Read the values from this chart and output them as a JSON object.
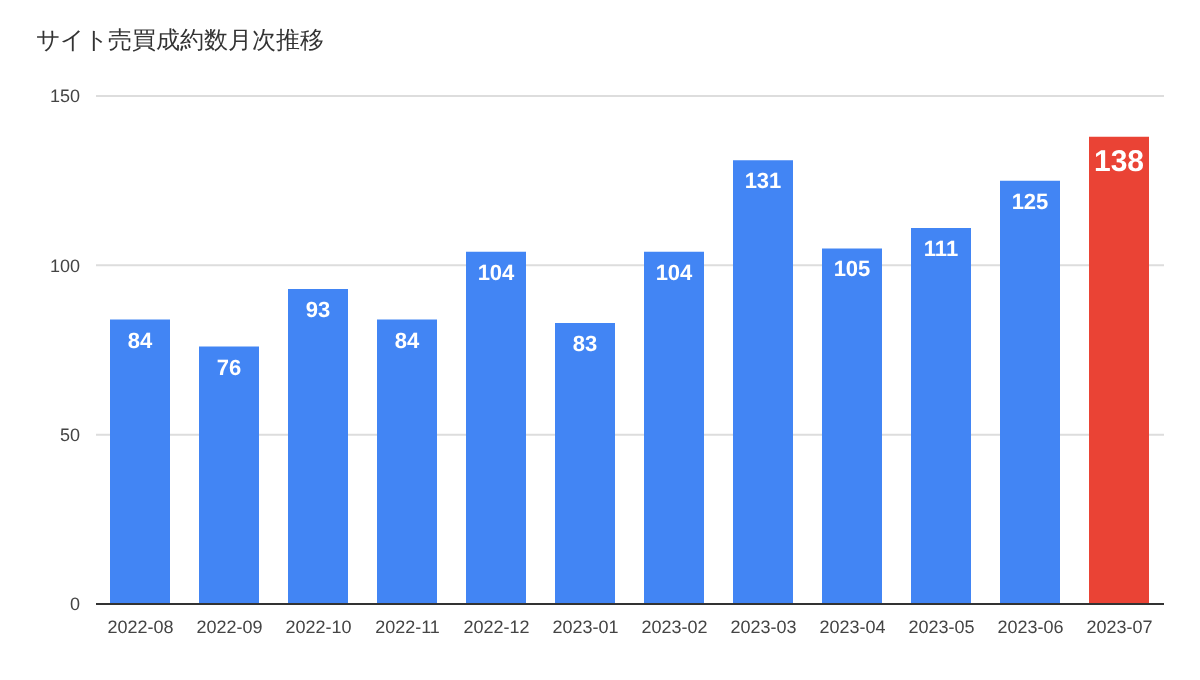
{
  "chart_data": {
    "type": "bar",
    "title": "サイト売買成約数月次推移",
    "categories": [
      "2022-08",
      "2022-09",
      "2022-10",
      "2022-11",
      "2022-12",
      "2023-01",
      "2023-02",
      "2023-03",
      "2023-04",
      "2023-05",
      "2023-06",
      "2023-07"
    ],
    "values": [
      84,
      76,
      93,
      84,
      104,
      83,
      104,
      131,
      105,
      111,
      125,
      138
    ],
    "colors": [
      "#4285f4",
      "#4285f4",
      "#4285f4",
      "#4285f4",
      "#4285f4",
      "#4285f4",
      "#4285f4",
      "#4285f4",
      "#4285f4",
      "#4285f4",
      "#4285f4",
      "#ea4335"
    ],
    "ylim": [
      0,
      150
    ],
    "yticks": [
      0,
      50,
      100,
      150
    ],
    "grid": "y",
    "data_labels": true
  }
}
